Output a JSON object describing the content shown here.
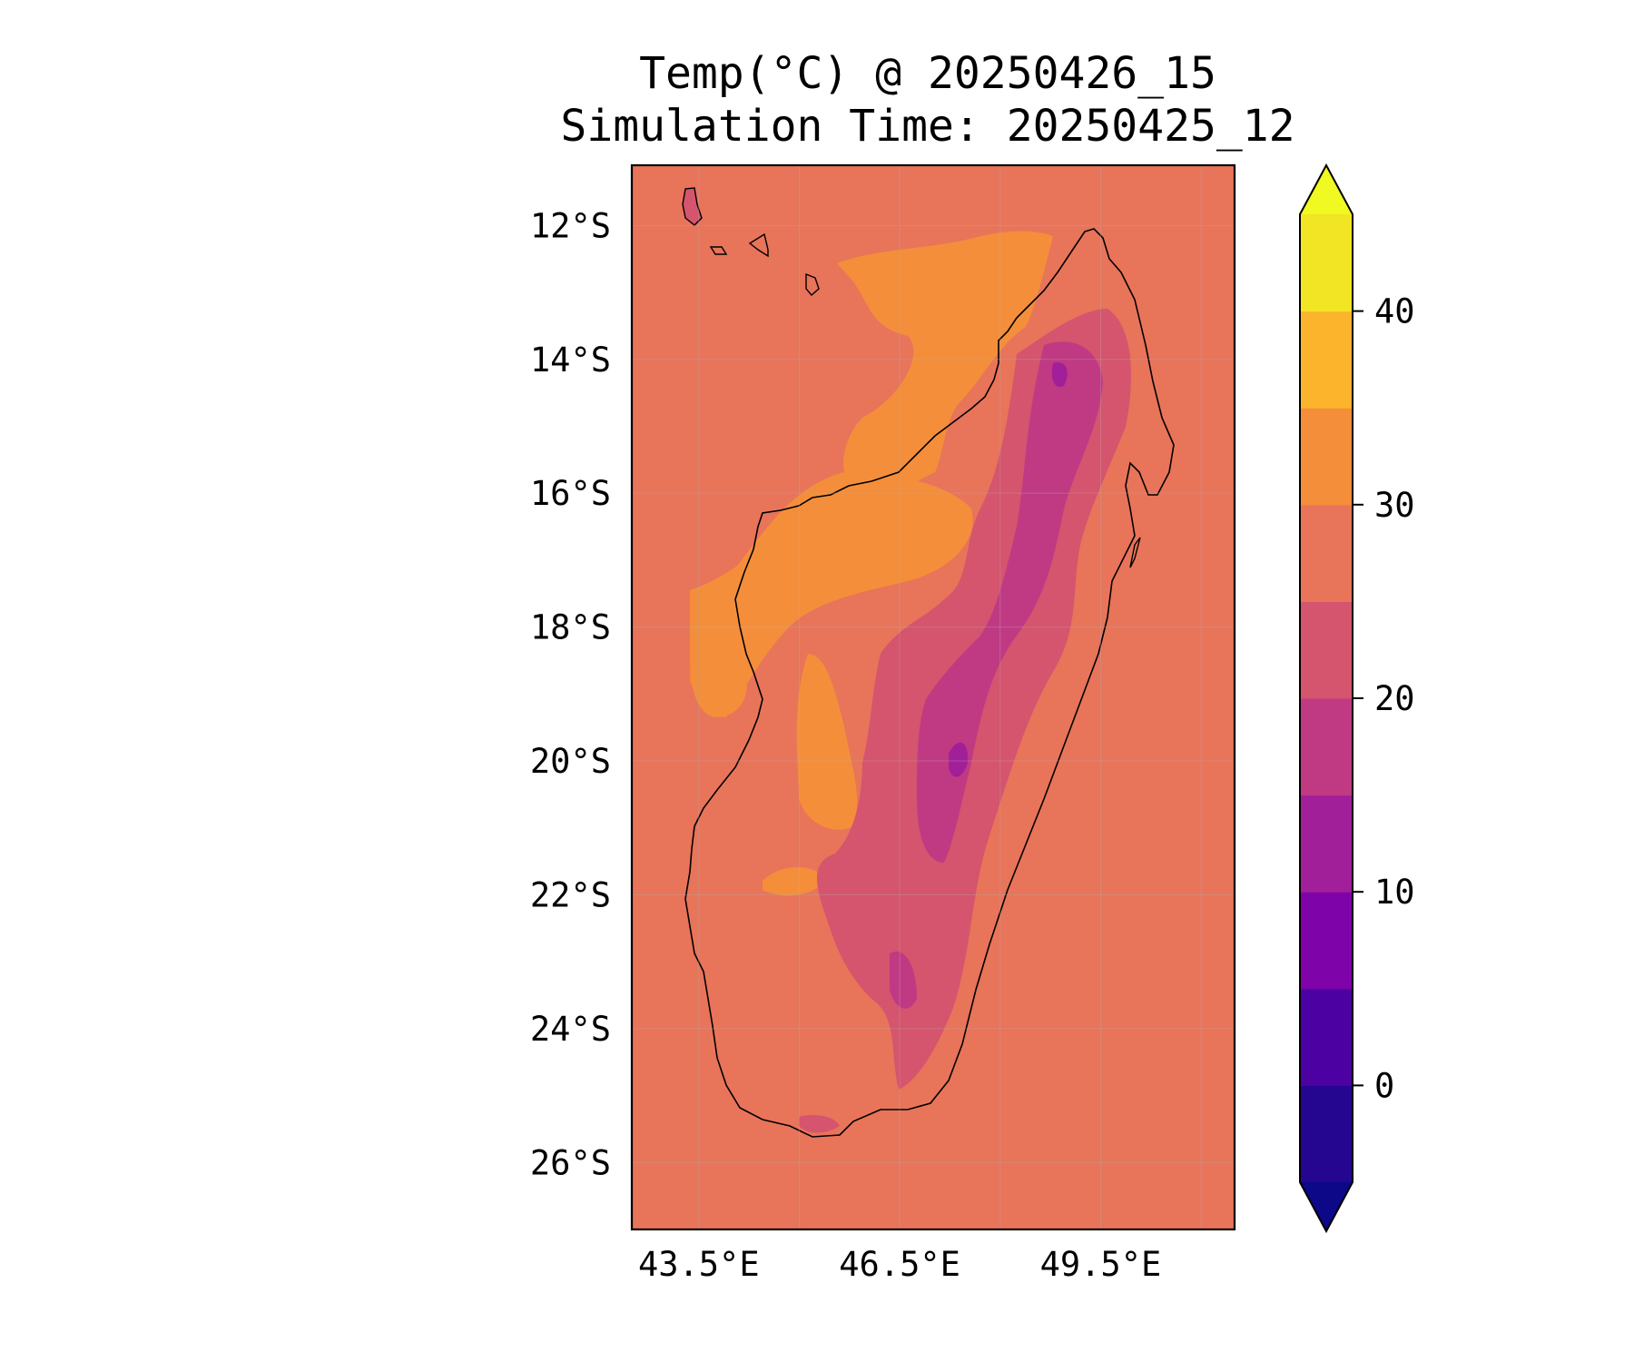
{
  "title_line1": "Temp(°C) @ 20250426_15",
  "title_line2": "Simulation Time: 20250425_12",
  "map": {
    "extent": {
      "lon_min": 42.5,
      "lon_max": 51.5,
      "lat_min": -27.0,
      "lat_max": -11.1
    },
    "background_color": "#e8745a",
    "coastline_color": "#000000",
    "lat_ticks": [
      {
        "value": -12,
        "label": "12°S"
      },
      {
        "value": -14,
        "label": "14°S"
      },
      {
        "value": -16,
        "label": "16°S"
      },
      {
        "value": -18,
        "label": "18°S"
      },
      {
        "value": -20,
        "label": "20°S"
      },
      {
        "value": -22,
        "label": "22°S"
      },
      {
        "value": -24,
        "label": "24°S"
      },
      {
        "value": -26,
        "label": "26°S"
      }
    ],
    "lon_ticks": [
      {
        "value": 43.5,
        "label": "43.5°E"
      },
      {
        "value": 46.5,
        "label": "46.5°E"
      },
      {
        "value": 49.5,
        "label": "49.5°E"
      }
    ],
    "grid_lons": [
      43.5,
      45.0,
      46.5,
      48.0,
      49.5,
      51.0
    ],
    "grid_lats": [
      -12,
      -14,
      -16,
      -18,
      -20,
      -22,
      -24,
      -26
    ]
  },
  "colorbar": {
    "min": -5,
    "max": 45,
    "extend": "both",
    "ticks": [
      {
        "value": 0,
        "label": "0"
      },
      {
        "value": 10,
        "label": "10"
      },
      {
        "value": 20,
        "label": "20"
      },
      {
        "value": 30,
        "label": "30"
      },
      {
        "value": 40,
        "label": "40"
      }
    ],
    "levels": [
      {
        "from": -5,
        "to": 0,
        "color": "#240690"
      },
      {
        "from": 0,
        "to": 5,
        "color": "#4c02a2"
      },
      {
        "from": 5,
        "to": 10,
        "color": "#7e03a8"
      },
      {
        "from": 10,
        "to": 15,
        "color": "#a21f9a"
      },
      {
        "from": 15,
        "to": 20,
        "color": "#c03a83"
      },
      {
        "from": 20,
        "to": 25,
        "color": "#d5546e"
      },
      {
        "from": 25,
        "to": 30,
        "color": "#e8745a"
      },
      {
        "from": 30,
        "to": 35,
        "color": "#f48e3b"
      },
      {
        "from": 35,
        "to": 40,
        "color": "#fbb42c"
      },
      {
        "from": 40,
        "to": 45,
        "color": "#f2e524"
      }
    ],
    "under_color": "#0d0887",
    "over_color": "#f0f921"
  },
  "regions": {
    "warm_northwest_color": "#f48e3b",
    "highland_cool_color": "#d5546e",
    "highland_cold_color": "#c03a83",
    "peak_color": "#a21f9a"
  }
}
